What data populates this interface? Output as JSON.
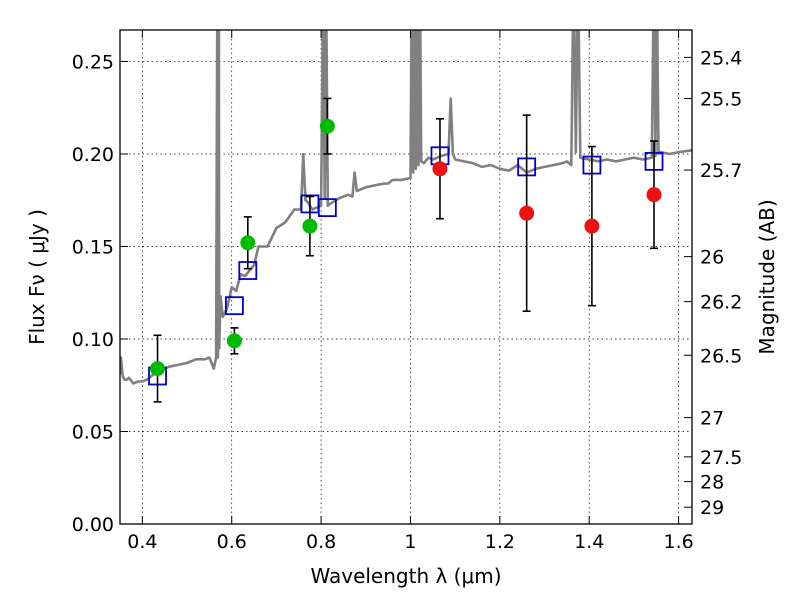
{
  "chart_data": {
    "type": "scatter",
    "xlabel": "Wavelength  λ (μm)",
    "ylabel": "Flux  Fν  ( μJy )",
    "y2label": "Magnitude (AB)",
    "xlim": [
      0.35,
      1.63
    ],
    "ylim": [
      0.0,
      0.267
    ],
    "xticks": [
      {
        "value": 0.4,
        "label": "0.4"
      },
      {
        "value": 0.6,
        "label": "0.6"
      },
      {
        "value": 0.8,
        "label": "0.8"
      },
      {
        "value": 1.0,
        "label": "1"
      },
      {
        "value": 1.2,
        "label": "1.2"
      },
      {
        "value": 1.4,
        "label": "1.4"
      },
      {
        "value": 1.6,
        "label": "1.6"
      }
    ],
    "yticks": [
      {
        "value": 0.0,
        "label": "0.00"
      },
      {
        "value": 0.05,
        "label": "0.05"
      },
      {
        "value": 0.1,
        "label": "0.10"
      },
      {
        "value": 0.15,
        "label": "0.15"
      },
      {
        "value": 0.2,
        "label": "0.20"
      },
      {
        "value": 0.25,
        "label": "0.25"
      }
    ],
    "magnitude_ticks": [
      {
        "flux": 0.2522,
        "label": "25.4"
      },
      {
        "flux": 0.23,
        "label": "25.5"
      },
      {
        "flux": 0.1913,
        "label": "25.7"
      },
      {
        "flux": 0.1445,
        "label": "26"
      },
      {
        "flux": 0.1202,
        "label": "26.2"
      },
      {
        "flux": 0.0912,
        "label": "26.5"
      },
      {
        "flux": 0.0575,
        "label": "27"
      },
      {
        "flux": 0.0363,
        "label": "27.5"
      },
      {
        "flux": 0.0229,
        "label": "28"
      },
      {
        "flux": 0.0091,
        "label": "29"
      }
    ],
    "grid": true,
    "colors": {
      "sed_model": "#808080",
      "green_points": "#00bb00",
      "red_points": "#ee1111",
      "model_squares": "#0000cc",
      "error_bars": "#000000"
    },
    "series": [
      {
        "kind": "line",
        "x": [
          0.35,
          0.352,
          0.356,
          0.36,
          0.365,
          0.37,
          0.38,
          0.39,
          0.4,
          0.41,
          0.42,
          0.44,
          0.46,
          0.48,
          0.5,
          0.52,
          0.54,
          0.55,
          0.56,
          0.565,
          0.568,
          0.569,
          0.571,
          0.572,
          0.575,
          0.58,
          0.59,
          0.6,
          0.61,
          0.62,
          0.63,
          0.64,
          0.65,
          0.66,
          0.68,
          0.7,
          0.72,
          0.74,
          0.755,
          0.76,
          0.765,
          0.77,
          0.78,
          0.8,
          0.805,
          0.808,
          0.811,
          0.815,
          0.82,
          0.84,
          0.86,
          0.87,
          0.875,
          0.88,
          0.9,
          0.92,
          0.94,
          0.95,
          0.96,
          0.98,
          1.0,
          1.003,
          1.006,
          1.009,
          1.012,
          1.015,
          1.018,
          1.021,
          1.024,
          1.03,
          1.04,
          1.05,
          1.07,
          1.085,
          1.09,
          1.095,
          1.1,
          1.12,
          1.14,
          1.16,
          1.18,
          1.2,
          1.22,
          1.24,
          1.26,
          1.28,
          1.3,
          1.32,
          1.34,
          1.35,
          1.36,
          1.365,
          1.37,
          1.375,
          1.38,
          1.4,
          1.42,
          1.44,
          1.46,
          1.48,
          1.5,
          1.52,
          1.54,
          1.545,
          1.548,
          1.551,
          1.555,
          1.56,
          1.58,
          1.6,
          1.63
        ],
        "y": [
          0.081,
          0.09,
          0.08,
          0.078,
          0.078,
          0.079,
          0.076,
          0.077,
          0.077,
          0.078,
          0.08,
          0.083,
          0.085,
          0.086,
          0.087,
          0.089,
          0.089,
          0.09,
          0.084,
          0.09,
          0.3,
          0.09,
          0.3,
          0.095,
          0.123,
          0.112,
          0.117,
          0.128,
          0.126,
          0.135,
          0.134,
          0.137,
          0.14,
          0.15,
          0.15,
          0.16,
          0.163,
          0.17,
          0.17,
          0.2,
          0.175,
          0.174,
          0.17,
          0.172,
          0.3,
          0.176,
          0.3,
          0.172,
          0.173,
          0.176,
          0.178,
          0.177,
          0.19,
          0.18,
          0.182,
          0.183,
          0.184,
          0.184,
          0.186,
          0.186,
          0.187,
          0.3,
          0.19,
          0.3,
          0.192,
          0.3,
          0.194,
          0.3,
          0.196,
          0.195,
          0.198,
          0.197,
          0.199,
          0.2,
          0.23,
          0.2,
          0.197,
          0.196,
          0.195,
          0.193,
          0.194,
          0.192,
          0.191,
          0.194,
          0.19,
          0.192,
          0.193,
          0.194,
          0.195,
          0.196,
          0.194,
          0.3,
          0.201,
          0.3,
          0.198,
          0.197,
          0.196,
          0.197,
          0.196,
          0.197,
          0.198,
          0.197,
          0.198,
          0.3,
          0.199,
          0.3,
          0.2,
          0.201,
          0.2,
          0.201,
          0.202
        ]
      },
      {
        "kind": "points",
        "x": [
          0.434,
          0.606,
          0.636,
          0.775,
          0.814
        ],
        "y": [
          0.084,
          0.099,
          0.152,
          0.161,
          0.215
        ],
        "yerr": [
          0.018,
          0.007,
          0.014,
          0.016,
          0.015
        ]
      },
      {
        "kind": "points",
        "x": [
          1.066,
          1.26,
          1.406,
          1.545
        ],
        "y": [
          0.192,
          0.168,
          0.161,
          0.178
        ],
        "yerr": [
          0.027,
          0.053,
          0.043,
          0.029
        ]
      },
      {
        "kind": "squares",
        "x": [
          0.434,
          0.606,
          0.636,
          0.775,
          0.814,
          1.066,
          1.26,
          1.406,
          1.545
        ],
        "y": [
          0.08,
          0.118,
          0.137,
          0.173,
          0.171,
          0.199,
          0.193,
          0.194,
          0.196
        ]
      }
    ]
  }
}
